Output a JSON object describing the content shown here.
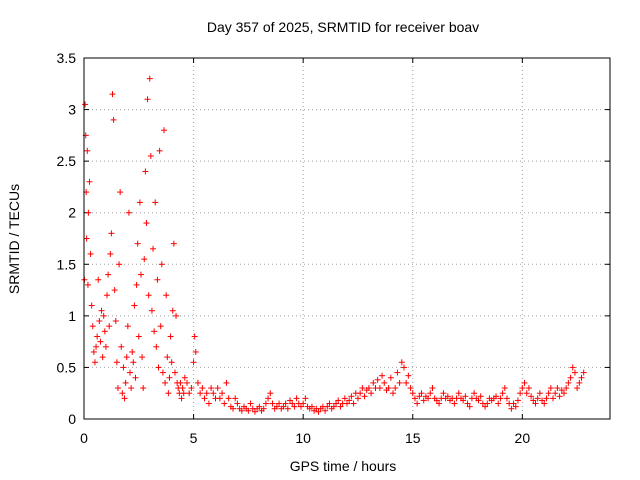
{
  "chart_data": {
    "type": "scatter",
    "title": "Day 357 of 2025, SRMTID for receiver boav",
    "xlabel": "GPS time / hours",
    "ylabel": "SRMTID / TECUs",
    "xlim": [
      0,
      24
    ],
    "ylim": [
      0,
      3.5
    ],
    "x_ticks": [
      0,
      5,
      10,
      15,
      20
    ],
    "x_tick_labels": [
      "0",
      "5",
      "10",
      "15",
      "20"
    ],
    "y_ticks": [
      0,
      0.5,
      1,
      1.5,
      2,
      2.5,
      3,
      3.5
    ],
    "y_tick_labels": [
      "0",
      "0.5",
      "1",
      "1.5",
      "2",
      "2.5",
      "3",
      "3.5"
    ],
    "grid": true,
    "marker": "+",
    "series_color": "#ff0000",
    "series": [
      {
        "name": "SRMTID",
        "points": [
          [
            0.02,
            1.35
          ],
          [
            0.05,
            3.05
          ],
          [
            0.08,
            2.75
          ],
          [
            0.1,
            2.2
          ],
          [
            0.12,
            1.75
          ],
          [
            0.15,
            2.6
          ],
          [
            0.18,
            1.3
          ],
          [
            0.2,
            2.0
          ],
          [
            0.25,
            2.3
          ],
          [
            0.3,
            1.6
          ],
          [
            0.35,
            1.1
          ],
          [
            0.4,
            0.9
          ],
          [
            0.45,
            0.65
          ],
          [
            0.5,
            0.55
          ],
          [
            0.55,
            0.7
          ],
          [
            0.6,
            0.8
          ],
          [
            0.65,
            1.35
          ],
          [
            0.7,
            0.95
          ],
          [
            0.75,
            0.75
          ],
          [
            0.8,
            1.05
          ],
          [
            0.85,
            0.6
          ],
          [
            0.9,
            1.0
          ],
          [
            0.95,
            0.85
          ],
          [
            1.0,
            0.7
          ],
          [
            1.05,
            1.2
          ],
          [
            1.1,
            1.4
          ],
          [
            1.15,
            0.9
          ],
          [
            1.2,
            1.6
          ],
          [
            1.25,
            1.8
          ],
          [
            1.3,
            3.15
          ],
          [
            1.35,
            2.9
          ],
          [
            1.4,
            1.25
          ],
          [
            1.45,
            0.95
          ],
          [
            1.5,
            0.55
          ],
          [
            1.55,
            0.3
          ],
          [
            1.6,
            1.5
          ],
          [
            1.65,
            2.2
          ],
          [
            1.7,
            0.7
          ],
          [
            1.75,
            0.25
          ],
          [
            1.8,
            0.5
          ],
          [
            1.85,
            0.2
          ],
          [
            1.9,
            0.35
          ],
          [
            1.95,
            0.6
          ],
          [
            2.0,
            0.9
          ],
          [
            2.05,
            2.0
          ],
          [
            2.1,
            0.45
          ],
          [
            2.15,
            0.3
          ],
          [
            2.2,
            0.65
          ],
          [
            2.25,
            0.55
          ],
          [
            2.3,
            1.1
          ],
          [
            2.35,
            0.4
          ],
          [
            2.4,
            1.3
          ],
          [
            2.45,
            1.7
          ],
          [
            2.5,
            0.8
          ],
          [
            2.55,
            2.1
          ],
          [
            2.6,
            1.4
          ],
          [
            2.65,
            0.6
          ],
          [
            2.7,
            0.3
          ],
          [
            2.75,
            1.55
          ],
          [
            2.8,
            2.4
          ],
          [
            2.85,
            1.9
          ],
          [
            2.9,
            3.1
          ],
          [
            2.95,
            1.2
          ],
          [
            3.0,
            3.3
          ],
          [
            3.05,
            2.55
          ],
          [
            3.1,
            1.05
          ],
          [
            3.15,
            1.65
          ],
          [
            3.2,
            0.85
          ],
          [
            3.25,
            2.1
          ],
          [
            3.3,
            0.7
          ],
          [
            3.35,
            1.35
          ],
          [
            3.4,
            0.5
          ],
          [
            3.45,
            2.6
          ],
          [
            3.5,
            0.9
          ],
          [
            3.55,
            1.5
          ],
          [
            3.6,
            0.45
          ],
          [
            3.65,
            2.8
          ],
          [
            3.7,
            0.35
          ],
          [
            3.75,
            1.2
          ],
          [
            3.8,
            0.6
          ],
          [
            3.85,
            0.25
          ],
          [
            3.9,
            0.4
          ],
          [
            3.95,
            0.8
          ],
          [
            4.0,
            0.55
          ],
          [
            4.05,
            1.05
          ],
          [
            4.1,
            1.7
          ],
          [
            4.15,
            0.45
          ],
          [
            4.2,
            1.0
          ],
          [
            4.25,
            0.35
          ],
          [
            4.3,
            0.3
          ],
          [
            4.35,
            0.25
          ],
          [
            4.4,
            0.35
          ],
          [
            4.45,
            0.2
          ],
          [
            4.5,
            0.3
          ],
          [
            4.55,
            0.25
          ],
          [
            4.6,
            0.4
          ],
          [
            4.7,
            0.35
          ],
          [
            4.8,
            0.25
          ],
          [
            4.9,
            0.3
          ],
          [
            5.0,
            0.55
          ],
          [
            5.05,
            0.8
          ],
          [
            5.1,
            0.65
          ],
          [
            5.2,
            0.35
          ],
          [
            5.3,
            0.25
          ],
          [
            5.4,
            0.3
          ],
          [
            5.5,
            0.2
          ],
          [
            5.6,
            0.25
          ],
          [
            5.7,
            0.15
          ],
          [
            5.8,
            0.3
          ],
          [
            5.9,
            0.25
          ],
          [
            6.0,
            0.2
          ],
          [
            6.1,
            0.3
          ],
          [
            6.2,
            0.2
          ],
          [
            6.3,
            0.25
          ],
          [
            6.4,
            0.15
          ],
          [
            6.5,
            0.35
          ],
          [
            6.6,
            0.2
          ],
          [
            6.7,
            0.12
          ],
          [
            6.8,
            0.1
          ],
          [
            6.9,
            0.2
          ],
          [
            7.0,
            0.15
          ],
          [
            7.1,
            0.1
          ],
          [
            7.2,
            0.08
          ],
          [
            7.3,
            0.12
          ],
          [
            7.4,
            0.1
          ],
          [
            7.5,
            0.08
          ],
          [
            7.6,
            0.15
          ],
          [
            7.7,
            0.1
          ],
          [
            7.8,
            0.07
          ],
          [
            7.9,
            0.1
          ],
          [
            8.0,
            0.12
          ],
          [
            8.1,
            0.08
          ],
          [
            8.2,
            0.1
          ],
          [
            8.3,
            0.15
          ],
          [
            8.4,
            0.2
          ],
          [
            8.5,
            0.25
          ],
          [
            8.6,
            0.15
          ],
          [
            8.7,
            0.1
          ],
          [
            8.8,
            0.12
          ],
          [
            8.9,
            0.15
          ],
          [
            9.0,
            0.1
          ],
          [
            9.1,
            0.12
          ],
          [
            9.2,
            0.15
          ],
          [
            9.3,
            0.1
          ],
          [
            9.4,
            0.18
          ],
          [
            9.5,
            0.15
          ],
          [
            9.6,
            0.12
          ],
          [
            9.7,
            0.2
          ],
          [
            9.8,
            0.15
          ],
          [
            9.9,
            0.12
          ],
          [
            10.0,
            0.15
          ],
          [
            10.1,
            0.2
          ],
          [
            10.2,
            0.12
          ],
          [
            10.3,
            0.1
          ],
          [
            10.4,
            0.12
          ],
          [
            10.5,
            0.08
          ],
          [
            10.6,
            0.1
          ],
          [
            10.7,
            0.07
          ],
          [
            10.8,
            0.1
          ],
          [
            10.9,
            0.12
          ],
          [
            11.0,
            0.08
          ],
          [
            11.1,
            0.12
          ],
          [
            11.2,
            0.15
          ],
          [
            11.3,
            0.1
          ],
          [
            11.4,
            0.12
          ],
          [
            11.5,
            0.15
          ],
          [
            11.6,
            0.18
          ],
          [
            11.7,
            0.12
          ],
          [
            11.8,
            0.15
          ],
          [
            11.9,
            0.2
          ],
          [
            12.0,
            0.15
          ],
          [
            12.1,
            0.18
          ],
          [
            12.2,
            0.22
          ],
          [
            12.3,
            0.15
          ],
          [
            12.4,
            0.25
          ],
          [
            12.5,
            0.2
          ],
          [
            12.6,
            0.25
          ],
          [
            12.7,
            0.3
          ],
          [
            12.8,
            0.22
          ],
          [
            12.9,
            0.28
          ],
          [
            13.0,
            0.3
          ],
          [
            13.1,
            0.25
          ],
          [
            13.2,
            0.35
          ],
          [
            13.3,
            0.3
          ],
          [
            13.4,
            0.38
          ],
          [
            13.5,
            0.3
          ],
          [
            13.6,
            0.42
          ],
          [
            13.7,
            0.35
          ],
          [
            13.8,
            0.28
          ],
          [
            13.9,
            0.3
          ],
          [
            14.0,
            0.4
          ],
          [
            14.1,
            0.25
          ],
          [
            14.2,
            0.3
          ],
          [
            14.3,
            0.45
          ],
          [
            14.4,
            0.35
          ],
          [
            14.5,
            0.55
          ],
          [
            14.6,
            0.5
          ],
          [
            14.7,
            0.35
          ],
          [
            14.8,
            0.42
          ],
          [
            14.9,
            0.3
          ],
          [
            15.0,
            0.25
          ],
          [
            15.1,
            0.2
          ],
          [
            15.2,
            0.15
          ],
          [
            15.3,
            0.22
          ],
          [
            15.4,
            0.25
          ],
          [
            15.5,
            0.18
          ],
          [
            15.6,
            0.22
          ],
          [
            15.7,
            0.2
          ],
          [
            15.8,
            0.25
          ],
          [
            15.9,
            0.3
          ],
          [
            16.0,
            0.2
          ],
          [
            16.1,
            0.18
          ],
          [
            16.2,
            0.15
          ],
          [
            16.3,
            0.2
          ],
          [
            16.4,
            0.25
          ],
          [
            16.5,
            0.2
          ],
          [
            16.6,
            0.22
          ],
          [
            16.7,
            0.18
          ],
          [
            16.8,
            0.2
          ],
          [
            16.9,
            0.15
          ],
          [
            17.0,
            0.2
          ],
          [
            17.1,
            0.25
          ],
          [
            17.2,
            0.2
          ],
          [
            17.3,
            0.18
          ],
          [
            17.4,
            0.22
          ],
          [
            17.5,
            0.15
          ],
          [
            17.6,
            0.12
          ],
          [
            17.7,
            0.2
          ],
          [
            17.8,
            0.25
          ],
          [
            17.9,
            0.2
          ],
          [
            18.0,
            0.18
          ],
          [
            18.1,
            0.22
          ],
          [
            18.2,
            0.15
          ],
          [
            18.3,
            0.12
          ],
          [
            18.4,
            0.15
          ],
          [
            18.5,
            0.2
          ],
          [
            18.6,
            0.18
          ],
          [
            18.7,
            0.2
          ],
          [
            18.8,
            0.22
          ],
          [
            18.9,
            0.15
          ],
          [
            19.0,
            0.2
          ],
          [
            19.1,
            0.25
          ],
          [
            19.2,
            0.3
          ],
          [
            19.3,
            0.2
          ],
          [
            19.4,
            0.15
          ],
          [
            19.5,
            0.1
          ],
          [
            19.6,
            0.15
          ],
          [
            19.7,
            0.12
          ],
          [
            19.8,
            0.18
          ],
          [
            19.9,
            0.25
          ],
          [
            20.0,
            0.3
          ],
          [
            20.1,
            0.35
          ],
          [
            20.2,
            0.25
          ],
          [
            20.3,
            0.3
          ],
          [
            20.4,
            0.22
          ],
          [
            20.5,
            0.18
          ],
          [
            20.6,
            0.15
          ],
          [
            20.7,
            0.2
          ],
          [
            20.8,
            0.25
          ],
          [
            20.9,
            0.18
          ],
          [
            21.0,
            0.15
          ],
          [
            21.1,
            0.2
          ],
          [
            21.2,
            0.25
          ],
          [
            21.3,
            0.3
          ],
          [
            21.4,
            0.2
          ],
          [
            21.5,
            0.25
          ],
          [
            21.6,
            0.3
          ],
          [
            21.7,
            0.22
          ],
          [
            21.8,
            0.28
          ],
          [
            21.9,
            0.25
          ],
          [
            22.0,
            0.3
          ],
          [
            22.1,
            0.35
          ],
          [
            22.2,
            0.4
          ],
          [
            22.3,
            0.5
          ],
          [
            22.4,
            0.45
          ],
          [
            22.5,
            0.3
          ],
          [
            22.6,
            0.35
          ],
          [
            22.7,
            0.4
          ],
          [
            22.8,
            0.45
          ]
        ]
      }
    ]
  }
}
